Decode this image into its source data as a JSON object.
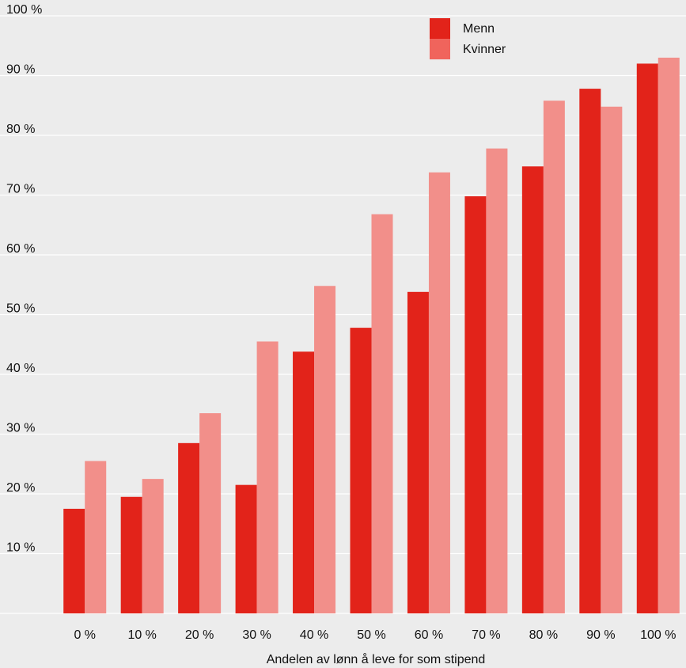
{
  "chart_data": {
    "type": "bar",
    "title": "",
    "xlabel": "Andelen av lønn å leve for som stipend",
    "ylabel": "",
    "categories": [
      "0 %",
      "10 %",
      "20 %",
      "30 %",
      "40 %",
      "50 %",
      "60 %",
      "70 %",
      "80 %",
      "90 %",
      "100 %"
    ],
    "series": [
      {
        "name": "Menn",
        "color": "#e2231a",
        "values": [
          17.5,
          19.5,
          28.5,
          21.5,
          43.8,
          47.8,
          53.8,
          69.8,
          74.8,
          87.8,
          92
        ]
      },
      {
        "name": "Kvinner",
        "color": "#f28f8a",
        "values": [
          25.5,
          22.5,
          33.5,
          45.5,
          54.8,
          66.8,
          73.8,
          77.8,
          85.8,
          84.8,
          93
        ]
      }
    ],
    "ylim": [
      0,
      100
    ],
    "y_ticks": [
      10,
      20,
      30,
      40,
      50,
      60,
      70,
      80,
      90,
      100
    ],
    "y_tick_labels": [
      "10 %",
      "20 %",
      "30 %",
      "40 %",
      "50 %",
      "60 %",
      "70 %",
      "80 %",
      "90 %",
      "100 %"
    ],
    "grid": true,
    "legend_position": "top-right",
    "legend_swatch_colors": [
      "#e2231a",
      "#f0645c"
    ]
  }
}
